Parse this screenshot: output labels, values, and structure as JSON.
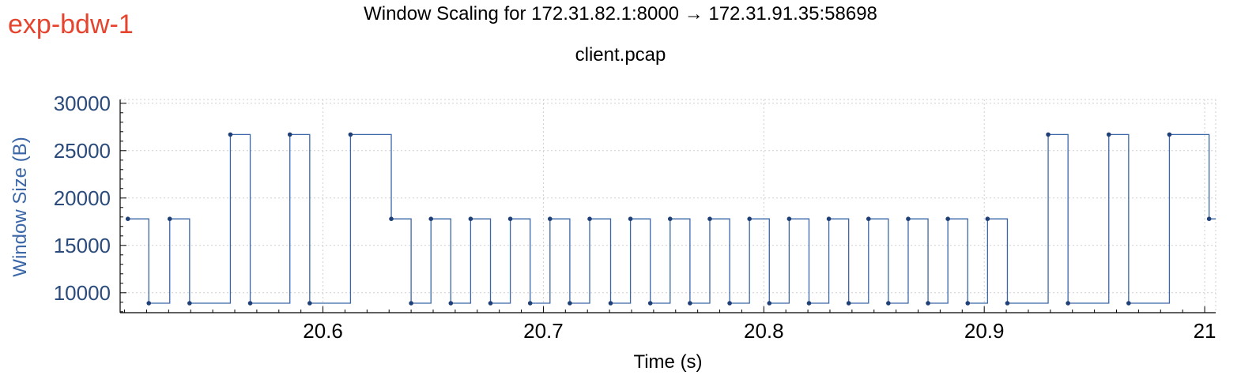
{
  "tag": "exp-bdw-1",
  "colors": {
    "tag": "#e5452f",
    "series": "#3b67a8",
    "points": "#1f3f77",
    "grid": "#cfcfcf"
  },
  "chart_data": {
    "type": "line",
    "title": "Window Scaling for 172.31.82.1:8000 → 172.31.91.35:58698",
    "subtitle": "client.pcap",
    "xlabel": "Time (s)",
    "ylabel": "Window Size (B)",
    "xlim": [
      20.508,
      21.005
    ],
    "ylim": [
      7900,
      30400
    ],
    "x_ticks": [
      20.6,
      20.7,
      20.8,
      20.9,
      21.0
    ],
    "x_tick_labels": [
      "20.6",
      "20.7",
      "20.8",
      "20.9",
      "21"
    ],
    "y_ticks": [
      10000,
      15000,
      20000,
      25000,
      30000
    ],
    "y_tick_labels": [
      "10000",
      "15000",
      "20000",
      "25000",
      "30000"
    ],
    "grid": true,
    "step": "post",
    "series": [
      {
        "x": [
          20.5115,
          20.521,
          20.5305,
          20.5395,
          20.558,
          20.567,
          20.585,
          20.594,
          20.6125,
          20.631,
          20.64,
          20.649,
          20.658,
          20.667,
          20.676,
          20.685,
          20.694,
          20.703,
          20.712,
          20.721,
          20.7305,
          20.7395,
          20.7485,
          20.7575,
          20.7665,
          20.7755,
          20.7845,
          20.7935,
          20.8025,
          20.8115,
          20.8205,
          20.8295,
          20.8385,
          20.8475,
          20.8565,
          20.8655,
          20.8745,
          20.8835,
          20.8925,
          20.9015,
          20.9105,
          20.929,
          20.938,
          20.9565,
          20.9655,
          20.984,
          21.002
        ],
        "y": [
          17800,
          8900,
          17800,
          8900,
          26700,
          8900,
          26700,
          8900,
          26700,
          17800,
          8900,
          17800,
          8900,
          17800,
          8900,
          17800,
          8900,
          17800,
          8900,
          17800,
          8900,
          17800,
          8900,
          17800,
          8900,
          17800,
          8900,
          17800,
          8900,
          17800,
          8900,
          17800,
          8900,
          17800,
          8900,
          17800,
          8900,
          17800,
          8900,
          17800,
          8900,
          26700,
          8900,
          26700,
          8900,
          26700,
          17800
        ]
      }
    ]
  }
}
